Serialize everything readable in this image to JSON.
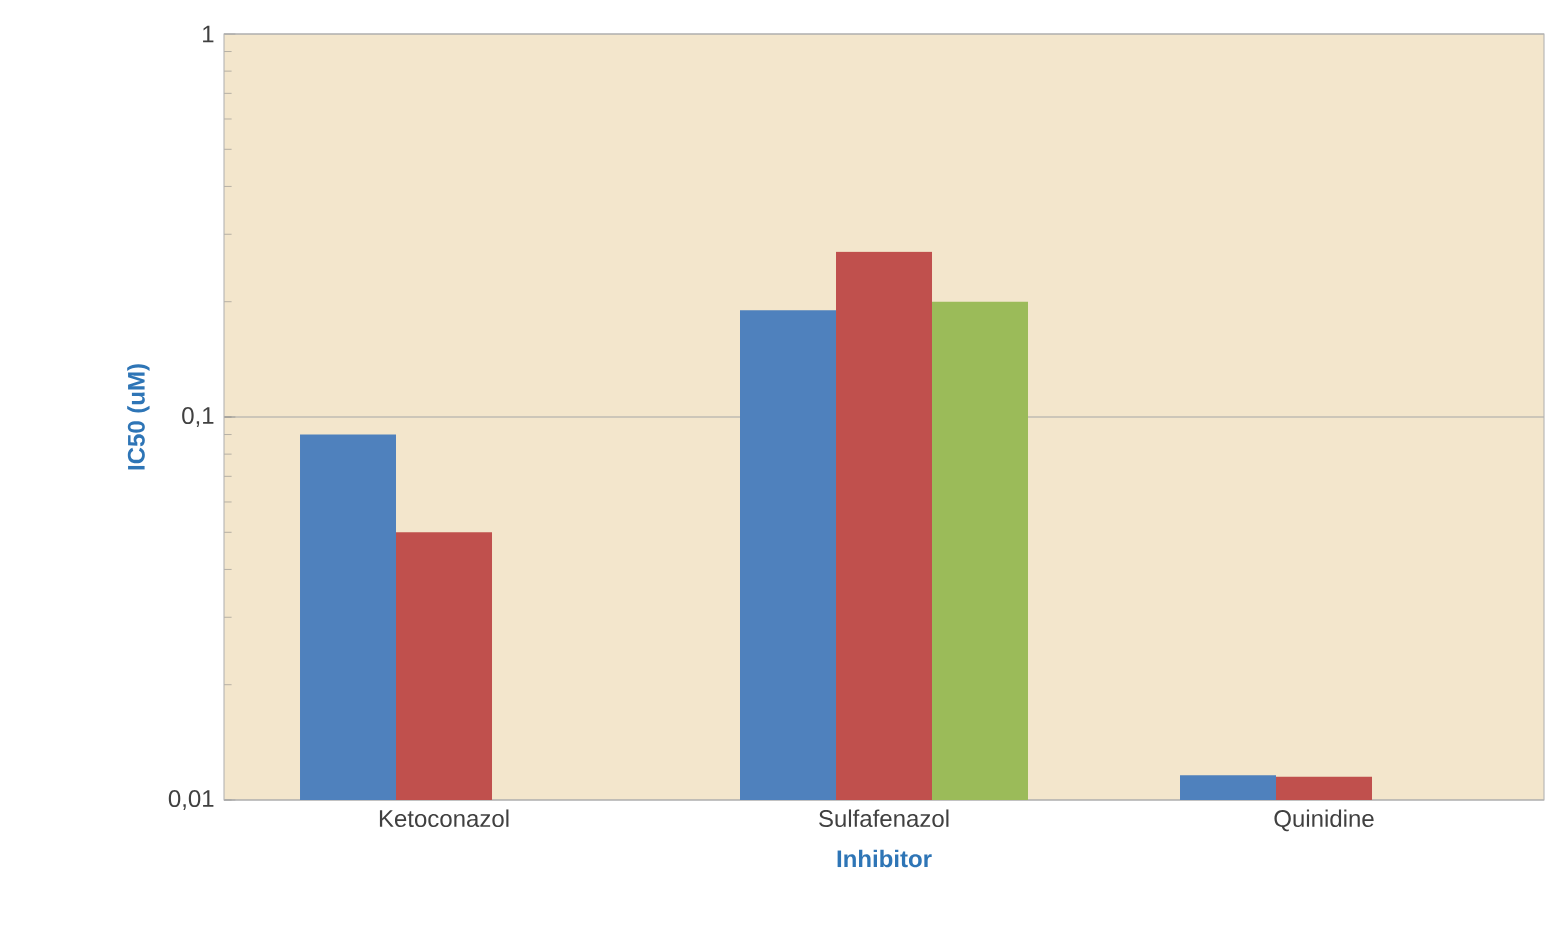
{
  "chart_data": {
    "type": "bar",
    "xlabel": "Inhibitor",
    "ylabel": "IC50 (uM)",
    "categories": [
      "Ketoconazol",
      "Sulfafenazol",
      "Quinidine"
    ],
    "series": [
      {
        "color": "#4f81bd",
        "values": [
          0.09,
          0.19,
          0.0116
        ]
      },
      {
        "color": "#c0504d",
        "values": [
          0.05,
          0.27,
          0.0115
        ]
      },
      {
        "color": "#9bbb59",
        "values": [
          null,
          0.2,
          null
        ]
      }
    ],
    "log": true,
    "ylim": [
      0.01,
      1
    ],
    "yticks": [
      {
        "value": 0.01,
        "label": "0,01"
      },
      {
        "value": 0.1,
        "label": "0,1"
      },
      {
        "value": 1,
        "label": "1"
      }
    ],
    "grid": "y"
  }
}
